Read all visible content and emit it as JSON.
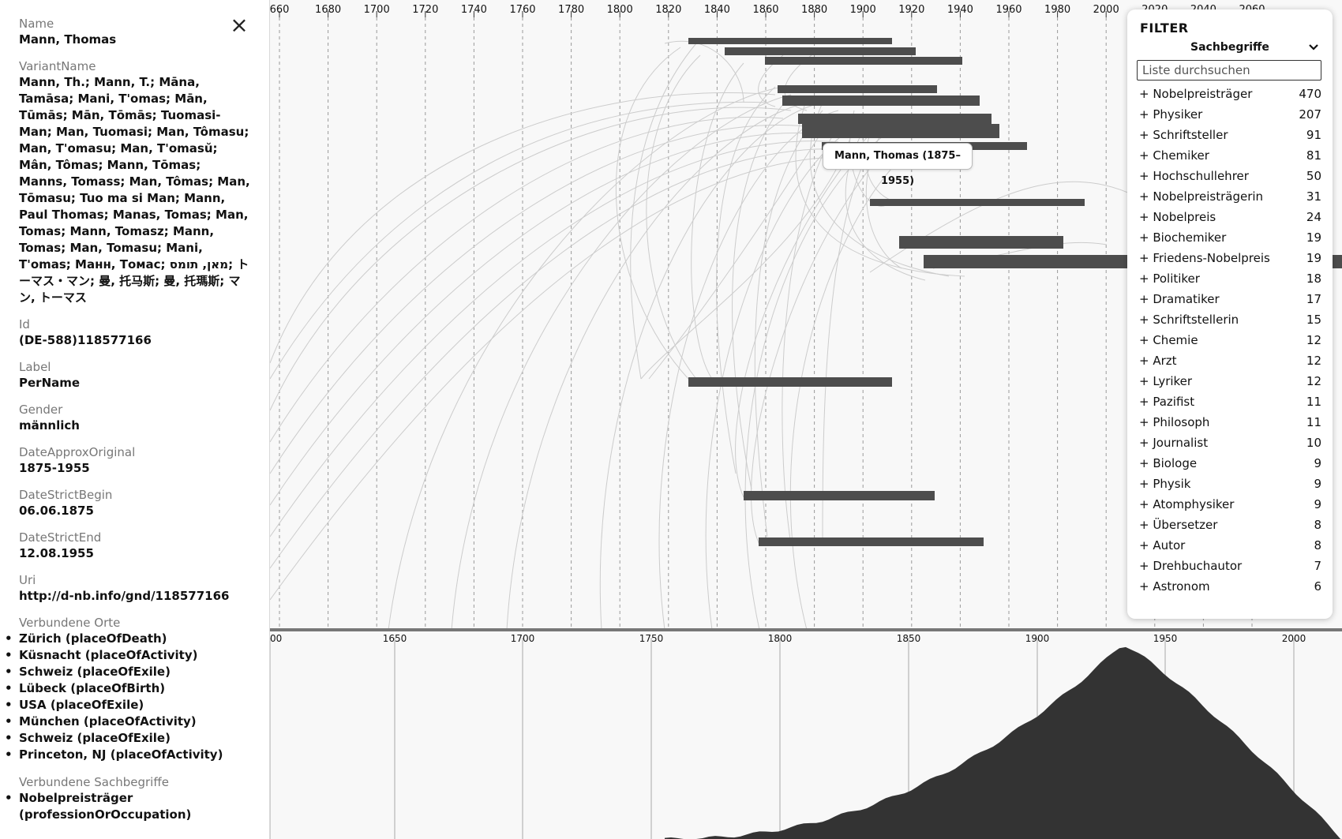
{
  "sidebar": {
    "close_icon": "×",
    "fields": [
      {
        "label": "Name",
        "value": "Mann, Thomas"
      },
      {
        "label": "VariantName",
        "value": "Mann, Th.; Mann, T.; Māna, Tamāsa; Mani, T'omas; Mān, Tūmās; Mān, Tōmās; Tuomasi-Man; Man, Tuomasi; Man, Tômasu; Man, T'omasu; Man, T'omasŭ; Mân, Tômas; Mann, Tōmas; Manns, Tomass; Man, Tômas; Man, Tōmasu; Tuo ma si Man; Mann, Paul Thomas; Manas, Tomas; Man, Tomas; Mann, Tomasz; Mann, Tomas; Man, Tomasu; Mani, T'omas; Манн, Томас; מאן, תומס; トーマス・マン; 曼, 托马斯; 曼, 托瑪斯; マン, トーマス"
      },
      {
        "label": "Id",
        "value": "(DE-588)118577166"
      },
      {
        "label": "Label",
        "value": "PerName"
      },
      {
        "label": "Gender",
        "value": "männlich"
      },
      {
        "label": "DateApproxOriginal",
        "value": "1875-1955"
      },
      {
        "label": "DateStrictBegin",
        "value": "06.06.1875"
      },
      {
        "label": "DateStrictEnd",
        "value": "12.08.1955"
      },
      {
        "label": "Uri",
        "value": "http://d-nb.info/gnd/118577166"
      }
    ],
    "places": {
      "label": "Verbundene Orte",
      "items": [
        "Zürich (placeOfDeath)",
        "Küsnacht (placeOfActivity)",
        "Schweiz (placeOfExile)",
        "Lübeck (placeOfBirth)",
        "USA (placeOfExile)",
        "München (placeOfActivity)",
        "Schweiz (placeOfExile)",
        "Princeton, NJ (placeOfActivity)"
      ]
    },
    "subjects": {
      "label": "Verbundene Sachbegriffe",
      "items": [
        "Nobelpreisträger (professionOrOccupation)"
      ]
    }
  },
  "timeline": {
    "top_axis_ticks": [
      "660",
      "1680",
      "1700",
      "1720",
      "1740",
      "1760",
      "1780",
      "1800",
      "1820",
      "1840",
      "1860",
      "1880",
      "1900",
      "1920",
      "1940",
      "1960",
      "1980",
      "2000",
      "2020",
      "2040",
      "2060"
    ],
    "tooltip": "Mann, Thomas (1875–1955)",
    "bar_color": "#4d4d4d",
    "arc_color": "#cccccc"
  },
  "density": {
    "axis_ticks": [
      "00",
      "1650",
      "1700",
      "1750",
      "1800",
      "1850",
      "1900",
      "1950",
      "2000"
    ],
    "fill_color": "#333333"
  },
  "filter": {
    "title": "FILTER",
    "category": "Sachbegriffe",
    "chevron_icon": "chevron-down-icon",
    "search_placeholder": "Liste durchsuchen",
    "items": [
      {
        "label": "+ Nobelpreisträger",
        "count": "470"
      },
      {
        "label": "+ Physiker",
        "count": "207"
      },
      {
        "label": "+ Schriftsteller",
        "count": "91"
      },
      {
        "label": "+ Chemiker",
        "count": "81"
      },
      {
        "label": "+ Hochschullehrer",
        "count": "50"
      },
      {
        "label": "+ Nobelpreisträgerin",
        "count": "31"
      },
      {
        "label": "+ Nobelpreis",
        "count": "24"
      },
      {
        "label": "+ Biochemiker",
        "count": "19"
      },
      {
        "label": "+ Friedens-Nobelpreis",
        "count": "19"
      },
      {
        "label": "+ Politiker",
        "count": "18"
      },
      {
        "label": "+ Dramatiker",
        "count": "17"
      },
      {
        "label": "+ Schriftstellerin",
        "count": "15"
      },
      {
        "label": "+ Chemie",
        "count": "12"
      },
      {
        "label": "+ Arzt",
        "count": "12"
      },
      {
        "label": "+ Lyriker",
        "count": "12"
      },
      {
        "label": "+ Pazifist",
        "count": "11"
      },
      {
        "label": "+ Philosoph",
        "count": "11"
      },
      {
        "label": "+ Journalist",
        "count": "10"
      },
      {
        "label": "+ Biologe",
        "count": "9"
      },
      {
        "label": "+ Physik",
        "count": "9"
      },
      {
        "label": "+ Atomphysiker",
        "count": "9"
      },
      {
        "label": "+ Übersetzer",
        "count": "8"
      },
      {
        "label": "+ Autor",
        "count": "8"
      },
      {
        "label": "+ Drehbuchautor",
        "count": "7"
      },
      {
        "label": "+ Astronom",
        "count": "6"
      }
    ]
  }
}
